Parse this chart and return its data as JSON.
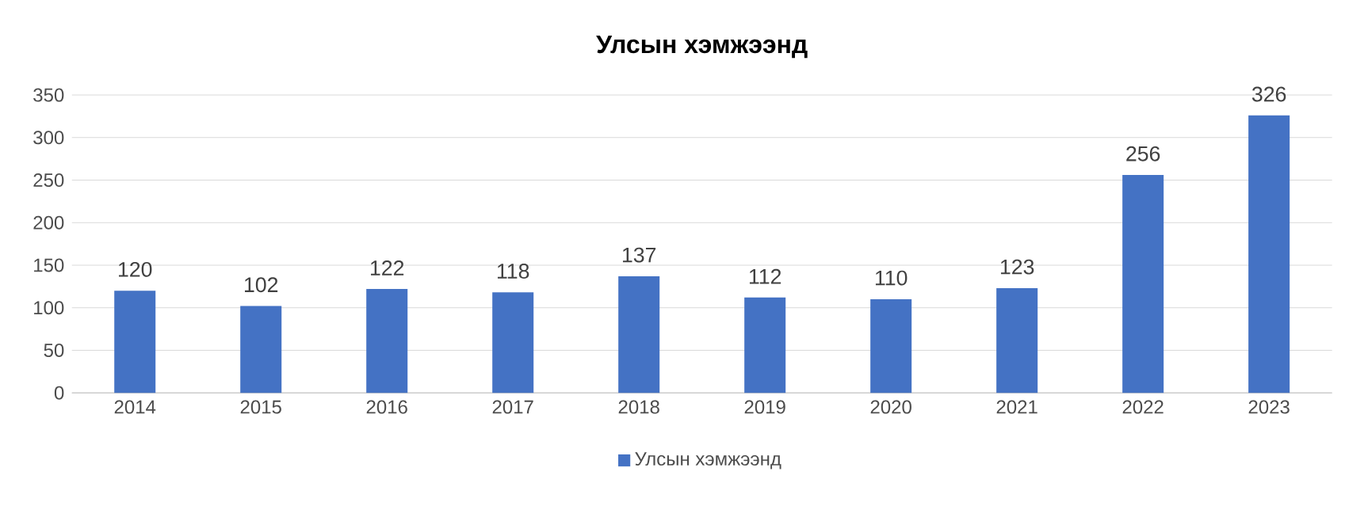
{
  "chart_data": {
    "type": "bar",
    "title": "Улсын хэмжээнд",
    "categories": [
      "2014",
      "2015",
      "2016",
      "2017",
      "2018",
      "2019",
      "2020",
      "2021",
      "2022",
      "2023"
    ],
    "series": [
      {
        "name": "Улсын хэмжээнд",
        "color": "#4472c4",
        "values": [
          120,
          102,
          122,
          118,
          137,
          112,
          110,
          123,
          256,
          326
        ]
      }
    ],
    "ylim": [
      0,
      350
    ],
    "yticks": [
      0,
      50,
      100,
      150,
      200,
      250,
      300,
      350
    ],
    "grid": "y",
    "legend": "bottom",
    "data_labels": true
  }
}
